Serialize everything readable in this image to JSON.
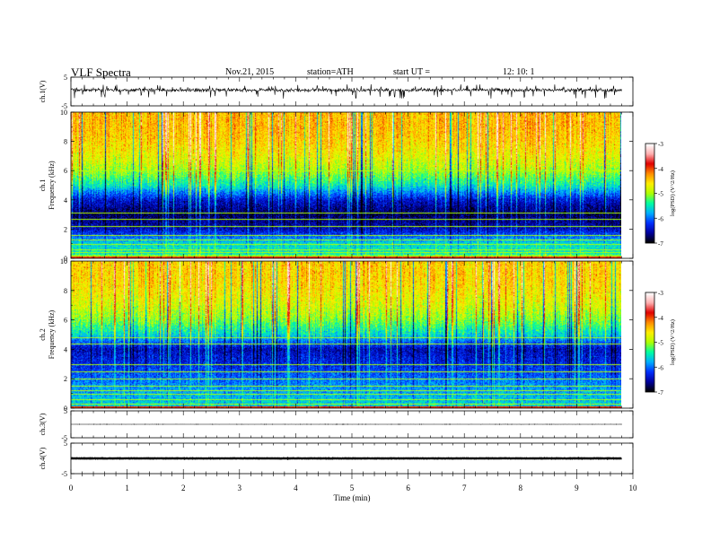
{
  "header": {
    "title": "VLF  Spectra",
    "date": "Nov.21, 2015",
    "station": "station=ATH",
    "start_label": "start  UT  =",
    "start_time": "12: 10: 1"
  },
  "chart_data": {
    "type": "heatmap",
    "x": {
      "label": "Time  (min)",
      "range": [
        0,
        10
      ],
      "ticks": [
        0,
        1,
        2,
        3,
        4,
        5,
        6,
        7,
        8,
        9,
        10
      ],
      "data_end": 9.8
    },
    "panels": [
      {
        "id": "ch1-waveform",
        "type": "line",
        "ylabel": "ch.1(V)",
        "ylim": [
          -5,
          5
        ],
        "yticks": [
          5,
          -5
        ],
        "baseline": 0.5,
        "noise_amplitude": 1.5,
        "spikes": "frequent negative spikes to about -2"
      },
      {
        "id": "ch1-spectrogram",
        "type": "heatmap",
        "ylabel": [
          "ch.1",
          "Frequency  (kHz)"
        ],
        "ylim": [
          0,
          10
        ],
        "yticks": [
          0,
          2,
          4,
          6,
          8,
          10
        ],
        "colorbar": {
          "label": "log(PSD) (V^2/Hz)",
          "range": [
            -7,
            -3
          ],
          "ticks": [
            -3,
            -4,
            -5,
            -6,
            -7
          ]
        },
        "levels_by_frequency": [
          {
            "f": 0,
            "v": -4.3
          },
          {
            "f": 0.3,
            "v": -5.5
          },
          {
            "f": 1,
            "v": -5.6
          },
          {
            "f": 2,
            "v": -6.5
          },
          {
            "f": 3,
            "v": -6.8
          },
          {
            "f": 4,
            "v": -6.4
          },
          {
            "f": 5,
            "v": -5.5
          },
          {
            "f": 6,
            "v": -5.0
          },
          {
            "f": 7,
            "v": -4.7
          },
          {
            "f": 8,
            "v": -4.5
          },
          {
            "f": 9,
            "v": -4.4
          },
          {
            "f": 10,
            "v": -4.4
          }
        ],
        "narrowband_lines_khz": [
          0.2,
          0.4,
          0.6,
          1.0,
          1.3,
          1.6,
          2.2,
          2.7,
          3.1,
          6.0
        ]
      },
      {
        "id": "ch2-spectrogram",
        "type": "heatmap",
        "ylabel": [
          "ch.2",
          "Frequency  (kHz)"
        ],
        "ylim": [
          0,
          10
        ],
        "yticks": [
          0,
          2,
          4,
          6,
          8,
          10
        ],
        "colorbar": {
          "label": "log(PSD) (V^2/Hz)",
          "range": [
            -7,
            -3
          ],
          "ticks": [
            -3,
            -4,
            -5,
            -6,
            -7
          ]
        },
        "levels_by_frequency": [
          {
            "f": 0,
            "v": -5.6
          },
          {
            "f": 1,
            "v": -5.8
          },
          {
            "f": 2,
            "v": -6.0
          },
          {
            "f": 3,
            "v": -6.3
          },
          {
            "f": 4,
            "v": -6.5
          },
          {
            "f": 5,
            "v": -5.6
          },
          {
            "f": 6,
            "v": -5.1
          },
          {
            "f": 7,
            "v": -4.8
          },
          {
            "f": 8,
            "v": -4.6
          },
          {
            "f": 9,
            "v": -4.5
          },
          {
            "f": 10,
            "v": -4.5
          }
        ],
        "narrowband_lines_khz": [
          0.3,
          0.6,
          1.0,
          1.2,
          1.5,
          2.0,
          2.5,
          3.0,
          4.4,
          4.8
        ]
      },
      {
        "id": "ch3-waveform",
        "type": "line",
        "ylabel": "ch.3(V)",
        "ylim": [
          -5,
          5
        ],
        "yticks": [
          5,
          -5
        ],
        "baseline": 0,
        "noise_amplitude": 0.05
      },
      {
        "id": "ch4-waveform",
        "type": "line",
        "ylabel": "ch.4(V)",
        "ylim": [
          -5,
          5
        ],
        "yticks": [
          5,
          -5
        ],
        "baseline": 0,
        "noise_amplitude": 0.15
      }
    ],
    "colormap": [
      "#000000",
      "#0000a0",
      "#0030ff",
      "#00b0ff",
      "#00ffa0",
      "#b0ff00",
      "#ffee00",
      "#ff8c00",
      "#e00000",
      "#ffb0b0",
      "#ffffff"
    ]
  }
}
